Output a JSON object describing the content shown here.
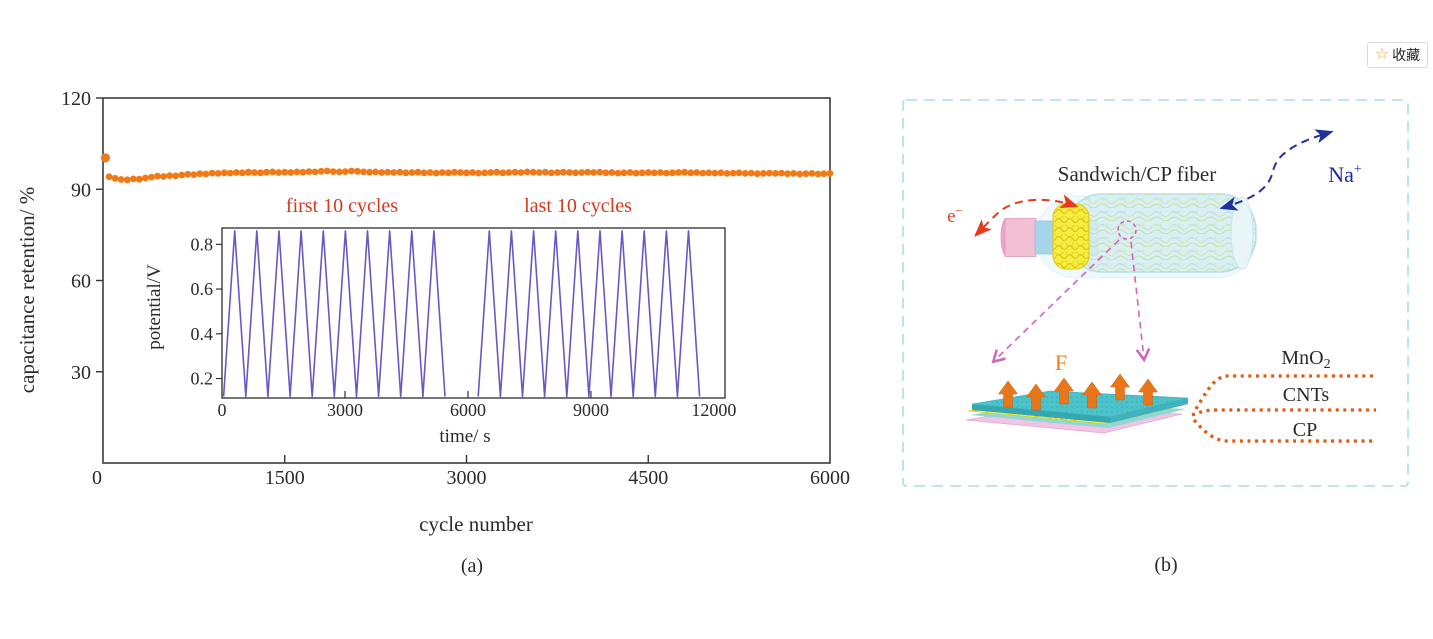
{
  "favorite_button": {
    "star_icon": "☆",
    "label": "收藏",
    "star_color": "#f6a42c"
  },
  "panel_a": {
    "label": "(a)",
    "annotation_first": "first 10 cycles",
    "annotation_last": "last 10 cycles",
    "annotation_color": "#d5381f"
  },
  "panel_b": {
    "label": "(b)",
    "title": "Sandwich/CP fiber",
    "na_ion": {
      "base": "Na",
      "sup": "+"
    },
    "electron": {
      "base": "e",
      "sup": "−"
    },
    "force_label": "F",
    "layer_labels": {
      "mno2_base": "MnO",
      "mno2_sub": "2",
      "cnts": "CNTs",
      "cp": "CP"
    },
    "colors": {
      "border": "#a9dcf3",
      "na_arrow": "#20309f",
      "e_arrow": "#e63a1d",
      "magenta": "#d263c0",
      "force_orange": "#e9761b",
      "leader_orange": "#e25712",
      "shell_cyan": "#d7eef3",
      "band_yellow": "#f5ec45",
      "core_blue": "#a7d4ea",
      "cp_pink": "#f2c0d2",
      "sheet_teal": "#4cc3cb"
    }
  },
  "chart_data": [
    {
      "type": "scatter",
      "title": "",
      "xlabel": "cycle number",
      "ylabel": "capacitance retention/ %",
      "xlim": [
        0,
        6000
      ],
      "ylim": [
        0,
        120
      ],
      "xticks": [
        0,
        1500,
        3000,
        4500,
        6000
      ],
      "yticks": [
        0,
        30,
        60,
        90,
        120
      ],
      "grid": false,
      "marker_color": "#f17a17",
      "first_point": [
        20,
        100.3
      ],
      "x_start": 50,
      "x_step": 50,
      "values": [
        94.1,
        93.6,
        93.2,
        93.1,
        93.4,
        93.3,
        93.7,
        94.0,
        94.3,
        94.2,
        94.5,
        94.4,
        94.7,
        94.9,
        94.8,
        95.1,
        95.0,
        95.3,
        95.2,
        95.4,
        95.3,
        95.5,
        95.4,
        95.6,
        95.5,
        95.4,
        95.6,
        95.7,
        95.5,
        95.6,
        95.5,
        95.7,
        95.6,
        95.8,
        95.7,
        95.9,
        96.0,
        95.8,
        95.7,
        95.8,
        96.0,
        95.9,
        95.7,
        95.6,
        95.7,
        95.5,
        95.6,
        95.5,
        95.6,
        95.4,
        95.5,
        95.6,
        95.4,
        95.5,
        95.3,
        95.5,
        95.4,
        95.6,
        95.5,
        95.4,
        95.5,
        95.3,
        95.4,
        95.5,
        95.6,
        95.4,
        95.5,
        95.6,
        95.5,
        95.7,
        95.6,
        95.5,
        95.6,
        95.4,
        95.5,
        95.6,
        95.5,
        95.4,
        95.5,
        95.6,
        95.5,
        95.6,
        95.4,
        95.5,
        95.3,
        95.4,
        95.5,
        95.3,
        95.4,
        95.5,
        95.4,
        95.5,
        95.3,
        95.4,
        95.5,
        95.6,
        95.4,
        95.5,
        95.3,
        95.4,
        95.3,
        95.4,
        95.2,
        95.3,
        95.4,
        95.2,
        95.3,
        95.1,
        95.2,
        95.3,
        95.2,
        95.3,
        95.1,
        95.2,
        95.0,
        95.1,
        95.2,
        95.0,
        95.1,
        95.2
      ]
    },
    {
      "type": "line",
      "title": "",
      "xlabel": "time/ s",
      "ylabel": "potential/V",
      "xlim": [
        0,
        12270
      ],
      "ylim": [
        0.113,
        0.873
      ],
      "xticks": [
        0,
        3000,
        6000,
        9000,
        12000
      ],
      "yticks": [
        0.2,
        0.4,
        0.6,
        0.8
      ],
      "grid": false,
      "line_color": "#6a58c4",
      "v_min": 0.12,
      "v_max": 0.86,
      "segments": [
        {
          "t0": 40,
          "v0": 0.12,
          "p0": 310,
          "T": 540,
          "n": 10
        },
        {
          "t0": 6250,
          "v0": 0.12,
          "p0": 6520,
          "T": 540,
          "n": 10
        }
      ]
    }
  ]
}
